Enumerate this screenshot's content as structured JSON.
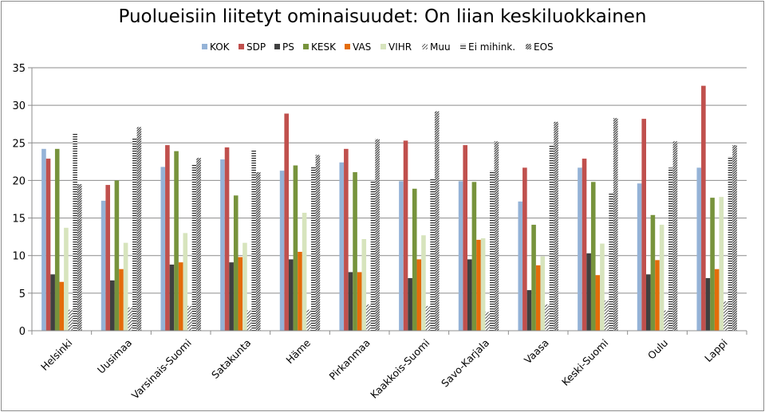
{
  "chart_data": {
    "type": "bar",
    "title": "Puolueisiin liitetyt ominaisuudet: On liian keskiluokkainen",
    "xlabel": "",
    "ylabel": "",
    "ylim": [
      0,
      35
    ],
    "yticks": [
      0,
      5,
      10,
      15,
      20,
      25,
      30,
      35
    ],
    "grid": true,
    "legend_position": "top",
    "categories": [
      "Helsinki",
      "Uusimaa",
      "Varsinais-Suomi",
      "Satakunta",
      "Häme",
      "Pirkanmaa",
      "Kaakkois-Suomi",
      "Savo-Karjala",
      "Vaasa",
      "Keski-Suomi",
      "Oulu",
      "Lappi"
    ],
    "series": [
      {
        "name": "KOK",
        "color": "#95b3d7",
        "pattern": "solid",
        "values": [
          24.2,
          17.3,
          21.8,
          22.8,
          21.3,
          22.4,
          19.9,
          19.9,
          17.2,
          21.7,
          19.6,
          21.7
        ]
      },
      {
        "name": "SDP",
        "color": "#c0504d",
        "pattern": "solid",
        "values": [
          22.9,
          19.4,
          24.7,
          24.4,
          28.9,
          24.2,
          25.3,
          24.7,
          21.7,
          22.9,
          28.2,
          32.6
        ]
      },
      {
        "name": "PS",
        "color": "#404040",
        "pattern": "solid",
        "values": [
          7.5,
          6.7,
          8.8,
          9.1,
          9.5,
          7.8,
          7.0,
          9.5,
          5.4,
          10.3,
          7.5,
          7.0
        ]
      },
      {
        "name": "KESK",
        "color": "#77933c",
        "pattern": "solid",
        "values": [
          24.2,
          20.0,
          23.9,
          18.0,
          22.0,
          21.1,
          18.9,
          19.8,
          14.1,
          19.8,
          15.4,
          17.7
        ]
      },
      {
        "name": "VAS",
        "color": "#e46c0a",
        "pattern": "solid",
        "values": [
          6.5,
          8.2,
          9.1,
          9.8,
          10.5,
          7.8,
          9.5,
          12.1,
          8.7,
          7.4,
          9.4,
          8.2
        ]
      },
      {
        "name": "VIHR",
        "color": "#d7e4bd",
        "pattern": "solid",
        "values": [
          13.7,
          11.7,
          13.0,
          11.7,
          15.7,
          12.2,
          12.7,
          12.3,
          9.9,
          11.6,
          14.1,
          17.8
        ]
      },
      {
        "name": "Muu",
        "color": "#404040",
        "pattern": "diag-light",
        "values": [
          2.8,
          3.1,
          3.3,
          2.7,
          2.8,
          3.5,
          3.3,
          2.5,
          3.5,
          4.0,
          2.7,
          3.9
        ]
      },
      {
        "name": "Ei mihink.",
        "color": "#404040",
        "pattern": "horizontal",
        "values": [
          26.2,
          25.6,
          22.1,
          24.1,
          21.8,
          19.9,
          20.2,
          21.3,
          24.7,
          18.4,
          21.7,
          23.2
        ]
      },
      {
        "name": "EOS",
        "color": "#404040",
        "pattern": "diag-dense",
        "values": [
          19.5,
          27.1,
          23.0,
          21.1,
          23.4,
          25.5,
          29.2,
          25.2,
          27.8,
          28.3,
          25.2,
          24.7
        ]
      }
    ]
  }
}
